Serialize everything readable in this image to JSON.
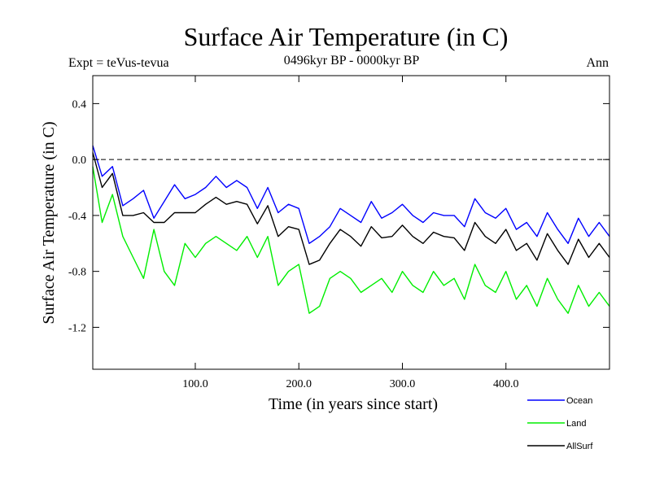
{
  "chart_data": {
    "type": "line",
    "title": "Surface Air Temperature (in C)",
    "subtitle_left": "Expt = teVus-tevua",
    "subtitle_center": "0496kyr BP - 0000kyr BP",
    "subtitle_right": "Ann",
    "xlabel": "Time (in years since start)",
    "ylabel": "Surface Air Temperature (in C)",
    "xlim": [
      1,
      500
    ],
    "ylim": [
      -1.5,
      0.6
    ],
    "x_ticks": [
      100,
      200,
      300,
      400
    ],
    "x_tick_labels": [
      "100.0",
      "200.0",
      "300.0",
      "400.0"
    ],
    "y_ticks": [
      0.4,
      0.0,
      -0.4,
      -0.8,
      -1.2
    ],
    "y_tick_labels": [
      "0.4",
      "0.0",
      "-0.4",
      "-0.8",
      "-1.2"
    ],
    "reference_line": 0.0,
    "legend_position": "bottom-right",
    "x": [
      1,
      10,
      20,
      30,
      40,
      50,
      60,
      70,
      80,
      90,
      100,
      110,
      120,
      130,
      140,
      150,
      160,
      170,
      180,
      190,
      200,
      210,
      220,
      230,
      240,
      250,
      260,
      270,
      280,
      290,
      300,
      310,
      320,
      330,
      340,
      350,
      360,
      370,
      380,
      390,
      400,
      410,
      420,
      430,
      440,
      450,
      460,
      470,
      480,
      490,
      500
    ],
    "series": [
      {
        "name": "Ocean",
        "color": "#0000ff",
        "values": [
          0.1,
          -0.12,
          -0.05,
          -0.33,
          -0.28,
          -0.22,
          -0.42,
          -0.3,
          -0.18,
          -0.28,
          -0.25,
          -0.2,
          -0.12,
          -0.2,
          -0.15,
          -0.2,
          -0.35,
          -0.2,
          -0.38,
          -0.32,
          -0.35,
          -0.6,
          -0.55,
          -0.48,
          -0.35,
          -0.4,
          -0.45,
          -0.3,
          -0.42,
          -0.38,
          -0.32,
          -0.4,
          -0.45,
          -0.38,
          -0.4,
          -0.4,
          -0.48,
          -0.28,
          -0.38,
          -0.42,
          -0.35,
          -0.5,
          -0.45,
          -0.55,
          -0.38,
          -0.5,
          -0.6,
          -0.42,
          -0.55,
          -0.45,
          -0.55
        ]
      },
      {
        "name": "Land",
        "color": "#00ee00",
        "values": [
          -0.05,
          -0.45,
          -0.25,
          -0.55,
          -0.7,
          -0.85,
          -0.5,
          -0.8,
          -0.9,
          -0.6,
          -0.7,
          -0.6,
          -0.55,
          -0.6,
          -0.65,
          -0.55,
          -0.7,
          -0.55,
          -0.9,
          -0.8,
          -0.75,
          -1.1,
          -1.05,
          -0.85,
          -0.8,
          -0.85,
          -0.95,
          -0.9,
          -0.85,
          -0.95,
          -0.8,
          -0.9,
          -0.95,
          -0.8,
          -0.9,
          -0.85,
          -1.0,
          -0.75,
          -0.9,
          -0.95,
          -0.8,
          -1.0,
          -0.9,
          -1.05,
          -0.85,
          -1.0,
          -1.1,
          -0.9,
          -1.05,
          -0.95,
          -1.05
        ]
      },
      {
        "name": "AllSurf",
        "color": "#000000",
        "values": [
          0.05,
          -0.2,
          -0.1,
          -0.4,
          -0.4,
          -0.38,
          -0.45,
          -0.45,
          -0.38,
          -0.38,
          -0.38,
          -0.32,
          -0.27,
          -0.32,
          -0.3,
          -0.32,
          -0.46,
          -0.33,
          -0.55,
          -0.48,
          -0.5,
          -0.75,
          -0.72,
          -0.6,
          -0.5,
          -0.55,
          -0.62,
          -0.48,
          -0.56,
          -0.55,
          -0.47,
          -0.55,
          -0.6,
          -0.52,
          -0.55,
          -0.56,
          -0.65,
          -0.45,
          -0.55,
          -0.6,
          -0.5,
          -0.65,
          -0.6,
          -0.72,
          -0.53,
          -0.65,
          -0.75,
          -0.57,
          -0.7,
          -0.6,
          -0.7
        ]
      }
    ]
  }
}
